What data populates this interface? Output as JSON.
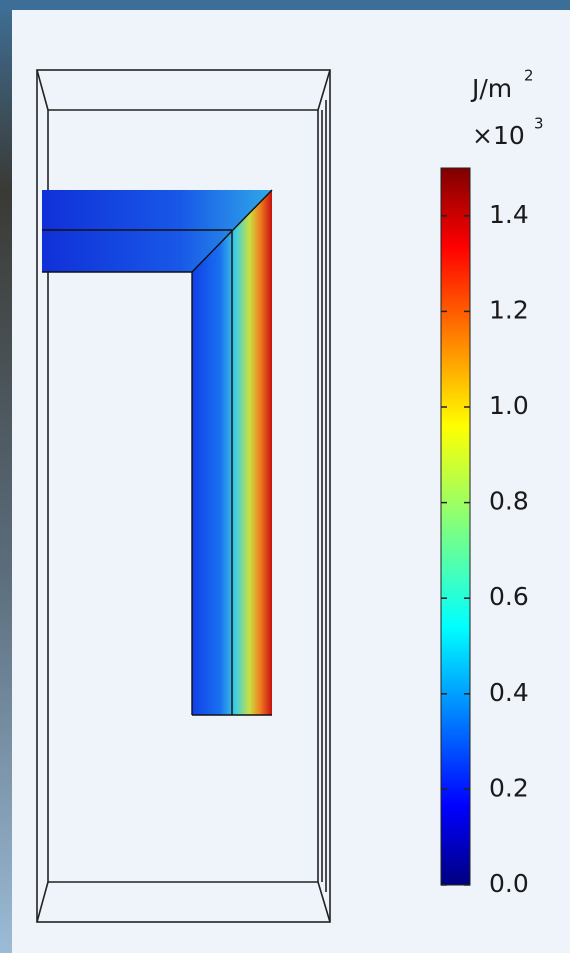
{
  "chart_data": {
    "type": "colorbar",
    "unit": "J/m",
    "unit_exponent": "2",
    "multiplier": "×10",
    "multiplier_exponent": "3",
    "clim": [
      0,
      1.5
    ],
    "ticks": [
      {
        "value": 0,
        "label": "0.0"
      },
      0.2,
      0.4,
      0.6,
      0.8,
      {
        "value": 1,
        "label": "1.0"
      },
      1.2,
      1.4
    ],
    "colormap": "jet"
  }
}
